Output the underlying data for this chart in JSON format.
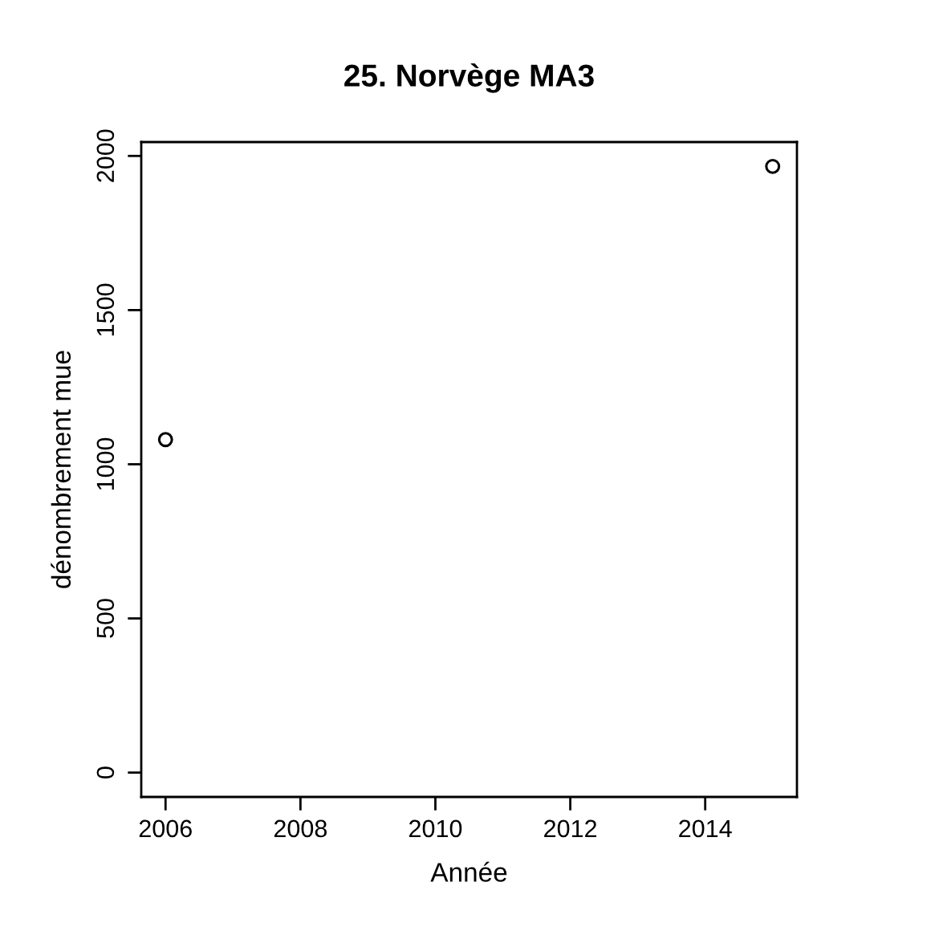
{
  "chart_data": {
    "type": "scatter",
    "title": "25. Norvège MA3",
    "xlabel": "Année",
    "ylabel": "dénombrement mue",
    "x": [
      2006,
      2015
    ],
    "values": [
      1080,
      1966
    ],
    "color": "#000000",
    "marker": "circle",
    "xlim": [
      2005.64,
      2015.36
    ],
    "ylim": [
      -79,
      2045
    ],
    "xticks": [
      2006,
      2008,
      2010,
      2012,
      2014
    ],
    "yticks": [
      0,
      500,
      1000,
      1500,
      2000
    ],
    "grid": false,
    "legend": false
  }
}
